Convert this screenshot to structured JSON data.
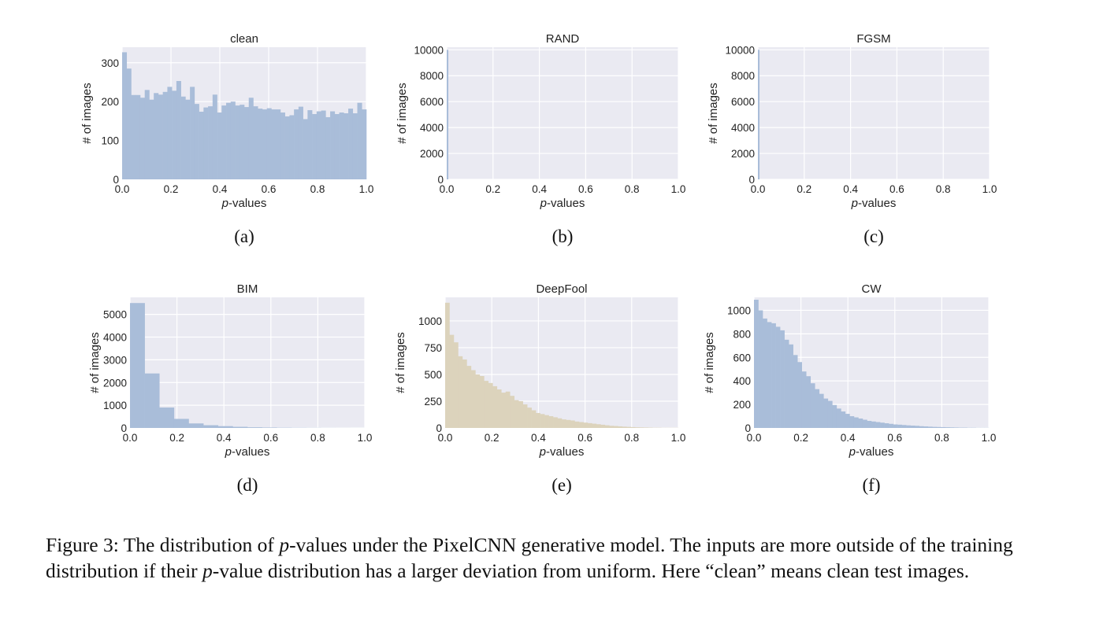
{
  "figure": {
    "caption_parts": [
      "Figure 3: The distribution of ",
      "p",
      "-values under the PixelCNN generative model. The inputs are more outside of the training distribution if their ",
      "p",
      "-value distribution has a larger deviation from uniform. Here “clean” means clean test images."
    ]
  },
  "colors": {
    "panel_bg": "#eaeaf2",
    "grid": "#ffffff",
    "blue": "#a9bdd9",
    "tan": "#dcd3bc",
    "text": "#222222"
  },
  "chart_data": [
    {
      "type": "bar",
      "title": "clean",
      "sublabel": "(a)",
      "xlabel_italic": "p",
      "xlabel_rest": "-values",
      "ylabel": "# of images",
      "xlim": [
        0,
        1
      ],
      "ylim": [
        0,
        340
      ],
      "xticks": [
        "0.0",
        "0.2",
        "0.4",
        "0.6",
        "0.8",
        "1.0"
      ],
      "yticks": [
        "0",
        "100",
        "200",
        "300"
      ],
      "ytick_values": [
        0,
        100,
        200,
        300
      ],
      "color": "blue",
      "values": [
        327,
        285,
        217,
        217,
        210,
        230,
        205,
        222,
        218,
        225,
        238,
        228,
        253,
        213,
        205,
        238,
        194,
        174,
        185,
        188,
        218,
        172,
        190,
        197,
        200,
        190,
        192,
        186,
        210,
        188,
        182,
        180,
        183,
        180,
        180,
        172,
        162,
        165,
        180,
        187,
        155,
        178,
        168,
        175,
        177,
        160,
        175,
        168,
        172,
        170,
        182,
        170,
        197,
        180
      ]
    },
    {
      "type": "bar",
      "title": "RAND",
      "sublabel": "(b)",
      "xlabel_italic": "p",
      "xlabel_rest": "-values",
      "ylabel": "# of images",
      "xlim": [
        0,
        1
      ],
      "ylim": [
        0,
        10200
      ],
      "xticks": [
        "0.0",
        "0.2",
        "0.4",
        "0.6",
        "0.8",
        "1.0"
      ],
      "yticks": [
        "0",
        "2000",
        "4000",
        "6000",
        "8000",
        "10000"
      ],
      "ytick_values": [
        0,
        2000,
        4000,
        6000,
        8000,
        10000
      ],
      "color": "blue",
      "values": [
        10000
      ]
    },
    {
      "type": "bar",
      "title": "FGSM",
      "sublabel": "(c)",
      "xlabel_italic": "p",
      "xlabel_rest": "-values",
      "ylabel": "# of images",
      "xlim": [
        0,
        1
      ],
      "ylim": [
        0,
        10200
      ],
      "xticks": [
        "0.0",
        "0.2",
        "0.4",
        "0.6",
        "0.8",
        "1.0"
      ],
      "yticks": [
        "0",
        "2000",
        "4000",
        "6000",
        "8000",
        "10000"
      ],
      "ytick_values": [
        0,
        2000,
        4000,
        6000,
        8000,
        10000
      ],
      "color": "blue",
      "values": [
        10000
      ]
    },
    {
      "type": "bar",
      "title": "BIM",
      "sublabel": "(d)",
      "xlabel_italic": "p",
      "xlabel_rest": "-values",
      "ylabel": "# of images",
      "xlim": [
        0,
        1
      ],
      "ylim": [
        0,
        5750
      ],
      "xticks": [
        "0.0",
        "0.2",
        "0.4",
        "0.6",
        "0.8",
        "1.0"
      ],
      "yticks": [
        "0",
        "1000",
        "2000",
        "3000",
        "4000",
        "5000"
      ],
      "ytick_values": [
        0,
        1000,
        2000,
        3000,
        4000,
        5000
      ],
      "color": "blue",
      "values": [
        5500,
        2400,
        900,
        400,
        200,
        120,
        80,
        50,
        30,
        20,
        12,
        8,
        5,
        3,
        2,
        1
      ]
    },
    {
      "type": "bar",
      "title": "DeepFool",
      "sublabel": "(e)",
      "xlabel_italic": "p",
      "xlabel_rest": "-values",
      "ylabel": "# of images",
      "xlim": [
        0,
        1
      ],
      "ylim": [
        0,
        1220
      ],
      "xticks": [
        "0.0",
        "0.2",
        "0.4",
        "0.6",
        "0.8",
        "1.0"
      ],
      "yticks": [
        "0",
        "250",
        "500",
        "750",
        "1000"
      ],
      "ytick_values": [
        0,
        250,
        500,
        750,
        1000
      ],
      "color": "tan",
      "values": [
        1170,
        870,
        800,
        670,
        640,
        580,
        540,
        500,
        485,
        440,
        420,
        390,
        360,
        330,
        340,
        300,
        260,
        250,
        220,
        190,
        165,
        140,
        130,
        120,
        110,
        100,
        90,
        80,
        75,
        70,
        60,
        55,
        50,
        45,
        40,
        35,
        30,
        25,
        20,
        18,
        15,
        12,
        10,
        8,
        6,
        5,
        4,
        3,
        2,
        2,
        1,
        1,
        1,
        1
      ]
    },
    {
      "type": "bar",
      "title": "CW",
      "sublabel": "(f)",
      "xlabel_italic": "p",
      "xlabel_rest": "-values",
      "ylabel": "# of images",
      "xlim": [
        0,
        1
      ],
      "ylim": [
        0,
        1110
      ],
      "xticks": [
        "0.0",
        "0.2",
        "0.4",
        "0.6",
        "0.8",
        "1.0"
      ],
      "yticks": [
        "0",
        "200",
        "400",
        "600",
        "800",
        "1000"
      ],
      "ytick_values": [
        0,
        200,
        400,
        600,
        800,
        1000
      ],
      "color": "blue",
      "values": [
        1090,
        1000,
        930,
        900,
        890,
        860,
        830,
        750,
        710,
        620,
        560,
        480,
        440,
        380,
        330,
        290,
        250,
        230,
        195,
        165,
        140,
        120,
        100,
        90,
        80,
        70,
        60,
        55,
        50,
        45,
        40,
        35,
        30,
        28,
        25,
        22,
        20,
        18,
        15,
        13,
        11,
        9,
        8,
        7,
        6,
        5,
        4,
        3,
        3,
        2,
        2,
        1,
        1,
        1
      ]
    }
  ]
}
